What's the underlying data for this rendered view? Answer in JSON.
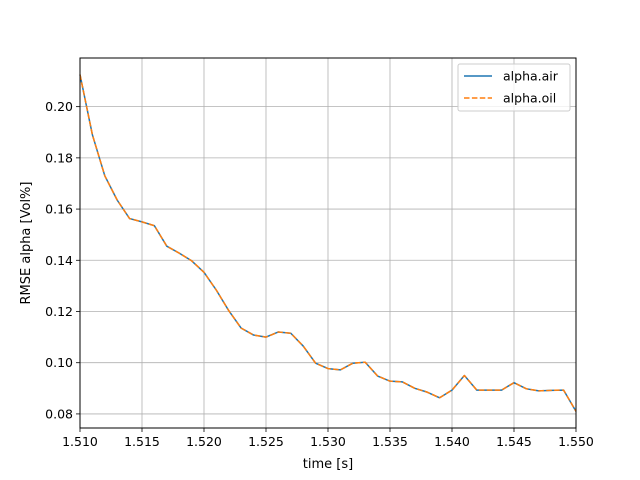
{
  "chart_data": {
    "type": "line",
    "xlabel": "time [s]",
    "ylabel": "RMSE alpha [Vol%]",
    "xlim": [
      1.51,
      1.55
    ],
    "ylim": [
      0.0745,
      0.219
    ],
    "grid": true,
    "legend_position": "top-right",
    "x_ticks": [
      "1.510",
      "1.515",
      "1.520",
      "1.525",
      "1.530",
      "1.535",
      "1.540",
      "1.545",
      "1.550"
    ],
    "y_ticks": [
      "0.08",
      "0.10",
      "0.12",
      "0.14",
      "0.16",
      "0.18",
      "0.20"
    ],
    "colors": {
      "alpha_air": "#1f77b4",
      "alpha_oil": "#ff7f0e",
      "grid": "#b0b0b0"
    },
    "x": [
      1.51,
      1.511,
      1.512,
      1.513,
      1.514,
      1.515,
      1.516,
      1.517,
      1.518,
      1.519,
      1.52,
      1.521,
      1.522,
      1.523,
      1.524,
      1.525,
      1.526,
      1.527,
      1.528,
      1.529,
      1.53,
      1.531,
      1.532,
      1.533,
      1.534,
      1.535,
      1.536,
      1.537,
      1.538,
      1.539,
      1.54,
      1.541,
      1.542,
      1.543,
      1.544,
      1.545,
      1.546,
      1.547,
      1.548,
      1.549,
      1.55
    ],
    "series": [
      {
        "name": "alpha.air",
        "style": "solid",
        "values": [
          0.2125,
          0.189,
          0.173,
          0.1635,
          0.1563,
          0.155,
          0.1535,
          0.1455,
          0.1428,
          0.1398,
          0.1353,
          0.1283,
          0.1203,
          0.1135,
          0.1108,
          0.11,
          0.112,
          0.1115,
          0.1065,
          0.0998,
          0.0977,
          0.0972,
          0.0998,
          0.1002,
          0.0948,
          0.0928,
          0.0925,
          0.09,
          0.0885,
          0.0863,
          0.0893,
          0.095,
          0.0893,
          0.0893,
          0.0893,
          0.0922,
          0.0898,
          0.089,
          0.0892,
          0.0893,
          0.081
        ]
      },
      {
        "name": "alpha.oil",
        "style": "dashed",
        "values": [
          0.2125,
          0.189,
          0.173,
          0.1635,
          0.1563,
          0.155,
          0.1535,
          0.1455,
          0.1428,
          0.1398,
          0.1353,
          0.1283,
          0.1203,
          0.1135,
          0.1108,
          0.11,
          0.112,
          0.1115,
          0.1065,
          0.0998,
          0.0977,
          0.0972,
          0.0998,
          0.1002,
          0.0948,
          0.0928,
          0.0925,
          0.09,
          0.0885,
          0.0863,
          0.0893,
          0.095,
          0.0893,
          0.0893,
          0.0893,
          0.0922,
          0.0898,
          0.089,
          0.0892,
          0.0893,
          0.081
        ]
      }
    ]
  }
}
